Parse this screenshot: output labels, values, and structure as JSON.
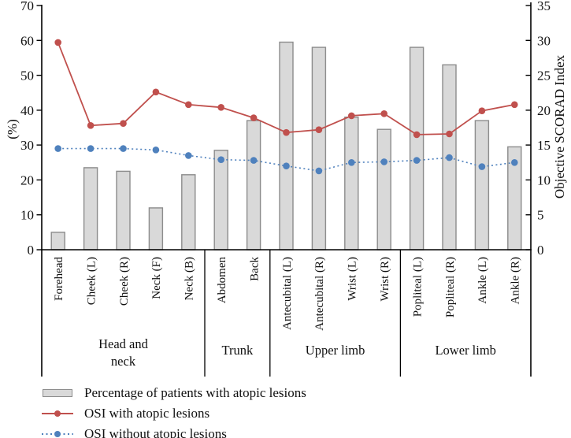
{
  "colors": {
    "bar_fill": "#d9d9d9",
    "bar_stroke": "#8c8c8c",
    "red": "#c0504d",
    "blue": "#4f81bd",
    "axis": "#000000"
  },
  "legend": [
    {
      "swatch": "bar-swatch",
      "label": "Percentage of patients with atopic lesions"
    },
    {
      "swatch": "red-line-swatch",
      "label": "OSI with atopic lesions"
    },
    {
      "swatch": "blue-dotted-swatch",
      "label": "OSI without atopic lesions"
    }
  ],
  "chart_data": {
    "type": "bar+line combo",
    "categories": [
      "Forehead",
      "Cheek (L)",
      "Cheek (R)",
      "Neck (F)",
      "Neck (B)",
      "Abdomen",
      "Back",
      "Antecubital (L)",
      "Antecubital (R)",
      "Wrist (L)",
      "Wrist (R)",
      "Popliteal (L)",
      "Popliteal (R)",
      "Ankle (L)",
      "Ankle (R)"
    ],
    "groups": [
      {
        "label": "Head and\nneck",
        "start": 0,
        "end": 5
      },
      {
        "label": "Trunk",
        "start": 5,
        "end": 7
      },
      {
        "label": "Upper limb",
        "start": 7,
        "end": 11
      },
      {
        "label": "Lower limb",
        "start": 11,
        "end": 15
      }
    ],
    "series": [
      {
        "name": "Percentage of patients with atopic lesions",
        "type": "bar",
        "axis": "left",
        "values": [
          5,
          23.5,
          22.5,
          12,
          21.5,
          28.5,
          37,
          59.5,
          58,
          38,
          34.5,
          58,
          53,
          37,
          29.5
        ]
      },
      {
        "name": "OSI with atopic lesions",
        "type": "line",
        "axis": "right",
        "values": [
          29.7,
          17.8,
          18.1,
          22.6,
          20.8,
          20.4,
          18.9,
          16.8,
          17.2,
          19.2,
          19.5,
          16.5,
          16.6,
          19.9,
          20.8
        ]
      },
      {
        "name": "OSI without atopic lesions",
        "type": "dotted-line",
        "axis": "right",
        "values": [
          14.5,
          14.5,
          14.5,
          14.3,
          13.5,
          12.9,
          12.8,
          12.0,
          11.3,
          12.5,
          12.6,
          12.8,
          13.2,
          11.9,
          12.5
        ]
      }
    ],
    "left_axis": {
      "label": "(%)",
      "min": 0,
      "max": 70,
      "ticks": [
        0,
        10,
        20,
        30,
        40,
        50,
        60,
        70
      ]
    },
    "right_axis": {
      "label": "Objective SCORAD Index",
      "min": 0,
      "max": 35,
      "ticks": [
        0,
        5,
        10,
        15,
        20,
        25,
        30,
        35
      ]
    },
    "grid": false,
    "legend_position": "bottom-left"
  }
}
